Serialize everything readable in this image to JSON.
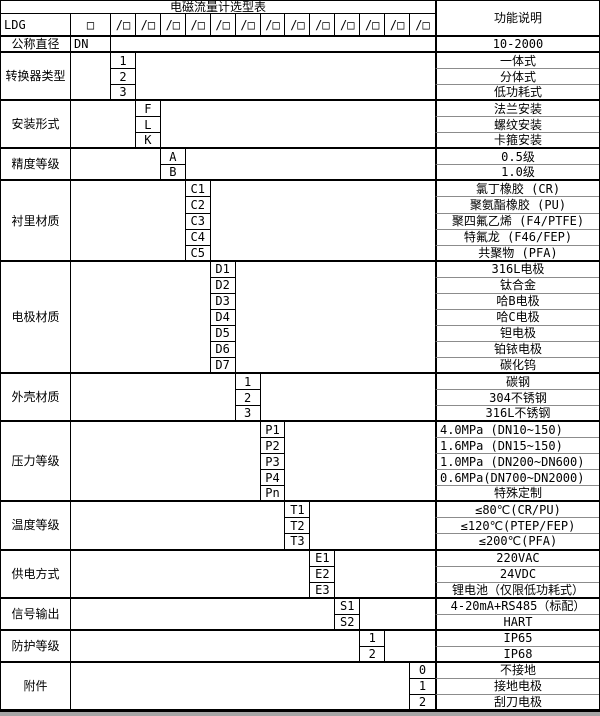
{
  "title": "电磁流量计选型表",
  "right_header": "功能说明",
  "model_row": {
    "prefix": "LDG",
    "first_box": "□",
    "slot_box": "/□",
    "slot_count": 13
  },
  "colors": {
    "border": "#000000",
    "grid_light": "#8c8c8c",
    "bottom_strip": "#a6a6a6",
    "background": "#ffffff",
    "text": "#000000"
  },
  "groups": [
    {
      "label": "公称直径",
      "slot": 0,
      "rows": [
        {
          "code": "DN",
          "desc": "10-2000"
        }
      ]
    },
    {
      "label": "转换器类型",
      "slot": 1,
      "rows": [
        {
          "code": "1",
          "desc": "一体式"
        },
        {
          "code": "2",
          "desc": "分体式"
        },
        {
          "code": "3",
          "desc": "低功耗式"
        }
      ]
    },
    {
      "label": "安装形式",
      "slot": 2,
      "rows": [
        {
          "code": "F",
          "desc": "法兰安装"
        },
        {
          "code": "L",
          "desc": "螺纹安装"
        },
        {
          "code": "K",
          "desc": "卡箍安装"
        }
      ]
    },
    {
      "label": "精度等级",
      "slot": 3,
      "rows": [
        {
          "code": "A",
          "desc": "0.5级"
        },
        {
          "code": "B",
          "desc": "1.0级"
        }
      ]
    },
    {
      "label": "衬里材质",
      "slot": 4,
      "rows": [
        {
          "code": "C1",
          "desc": "氯丁橡胶 (CR)"
        },
        {
          "code": "C2",
          "desc": "聚氨酯橡胶 (PU)"
        },
        {
          "code": "C3",
          "desc": "聚四氟乙烯 (F4/PTFE)"
        },
        {
          "code": "C4",
          "desc": "特氟龙 (F46/FEP)"
        },
        {
          "code": "C5",
          "desc": "共聚物 (PFA)"
        }
      ]
    },
    {
      "label": "电极材质",
      "slot": 5,
      "rows": [
        {
          "code": "D1",
          "desc": "316L电极"
        },
        {
          "code": "D2",
          "desc": "钛合金"
        },
        {
          "code": "D3",
          "desc": "哈B电极"
        },
        {
          "code": "D4",
          "desc": "哈C电极"
        },
        {
          "code": "D5",
          "desc": "钽电极"
        },
        {
          "code": "D6",
          "desc": "铂铱电极"
        },
        {
          "code": "D7",
          "desc": "碳化钨"
        }
      ]
    },
    {
      "label": "外壳材质",
      "slot": 6,
      "rows": [
        {
          "code": "1",
          "desc": "碳钢"
        },
        {
          "code": "2",
          "desc": "304不锈钢"
        },
        {
          "code": "3",
          "desc": "316L不锈钢"
        }
      ]
    },
    {
      "label": "压力等级",
      "slot": 7,
      "rows": [
        {
          "code": "P1",
          "desc": "4.0MPa (DN10~150)",
          "align": "left"
        },
        {
          "code": "P2",
          "desc": "1.6MPa (DN15~150)",
          "align": "left"
        },
        {
          "code": "P3",
          "desc": "1.0MPa (DN200~DN600)",
          "align": "left"
        },
        {
          "code": "P4",
          "desc": "0.6MPa(DN700~DN2000)",
          "align": "left"
        },
        {
          "code": "Pn",
          "desc": "特殊定制"
        }
      ]
    },
    {
      "label": "温度等级",
      "slot": 8,
      "rows": [
        {
          "code": "T1",
          "desc": "≤80℃(CR/PU)"
        },
        {
          "code": "T2",
          "desc": "≤120℃(PTEP/FEP)"
        },
        {
          "code": "T3",
          "desc": "≤200℃(PFA)"
        }
      ]
    },
    {
      "label": "供电方式",
      "slot": 9,
      "rows": [
        {
          "code": "E1",
          "desc": "220VAC"
        },
        {
          "code": "E2",
          "desc": "24VDC"
        },
        {
          "code": "E3",
          "desc": "锂电池（仅限低功耗式）"
        }
      ]
    },
    {
      "label": "信号输出",
      "slot": 10,
      "rows": [
        {
          "code": "S1",
          "desc": "4-20mA+RS485（标配）"
        },
        {
          "code": "S2",
          "desc": "HART"
        }
      ]
    },
    {
      "label": "防护等级",
      "slot": 11,
      "rows": [
        {
          "code": "1",
          "desc": "IP65"
        },
        {
          "code": "2",
          "desc": "IP68"
        }
      ]
    },
    {
      "label": "附件",
      "slot": 13,
      "rows": [
        {
          "code": "0",
          "desc": "不接地"
        },
        {
          "code": "1",
          "desc": "接地电极"
        },
        {
          "code": "2",
          "desc": "刮刀电极"
        }
      ]
    }
  ]
}
